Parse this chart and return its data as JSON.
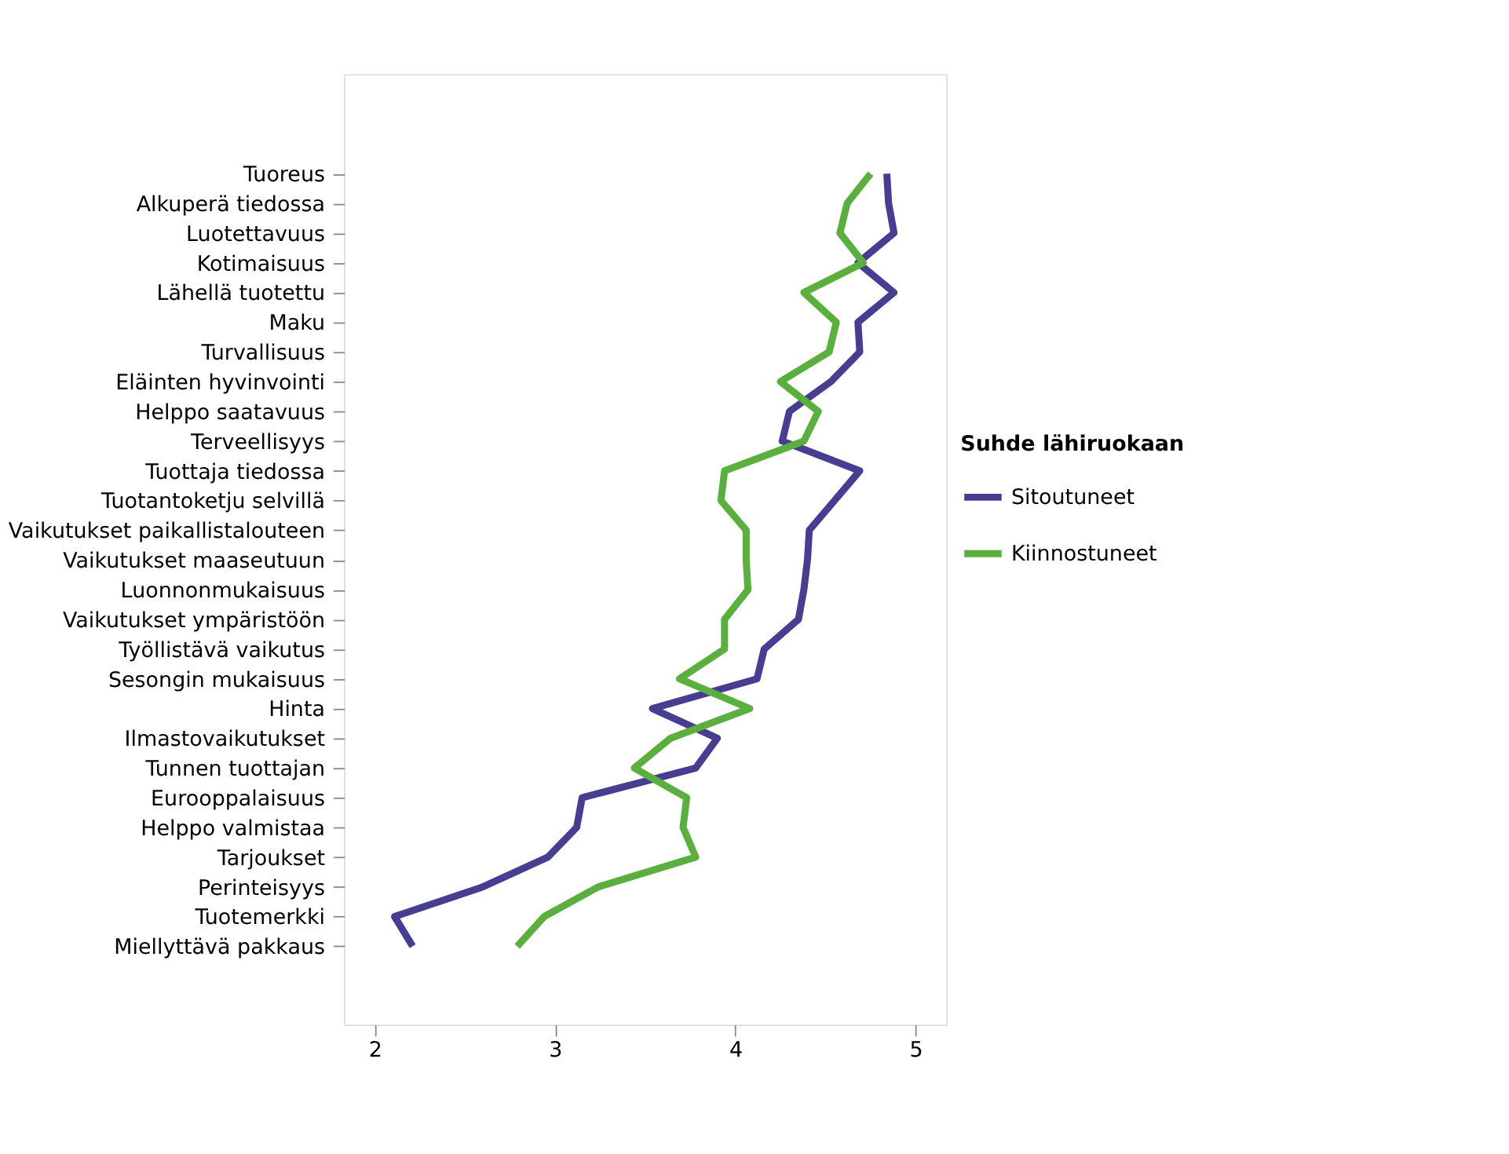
{
  "chart_data": {
    "type": "line",
    "orientation": "horizontal",
    "legend_title": "Suhde lähiruokaan",
    "legend": "right",
    "grid": false,
    "marker": "none",
    "line_style": "solid",
    "categories": [
      "Tuoreus",
      "Alkuperä tiedossa",
      "Luotettavuus",
      "Kotimaisuus",
      "Lähellä tuotettu",
      "Maku",
      "Turvallisuus",
      "Eläinten hyvinvointi",
      "Helppo saatavuus",
      "Terveellisyys",
      "Tuottaja tiedossa",
      "Tuotantoketju selvillä",
      "Vaikutukset paikallistalouteen",
      "Vaikutukset maaseutuun",
      "Luonnonmukaisuus",
      "Vaikutukset ympäristöön",
      "Työllistävä vaikutus",
      "Sesongin mukaisuus",
      "Hinta",
      "Ilmastovaikutukset",
      "Tunnen tuottajan",
      "Eurooppalaisuus",
      "Helppo valmistaa",
      "Tarjoukset",
      "Perinteisyys",
      "Tuotemerkki",
      "Miellyttävä pakkaus"
    ],
    "xlim": [
      1.83,
      5.17
    ],
    "xticks": [
      2,
      3,
      4,
      5
    ],
    "series": [
      {
        "name": "Sitoutuneet",
        "color": "#463f91",
        "values": [
          4.84,
          4.85,
          4.88,
          4.68,
          4.88,
          4.68,
          4.69,
          4.53,
          4.3,
          4.26,
          4.69,
          4.55,
          4.41,
          4.4,
          4.38,
          4.35,
          4.16,
          4.12,
          3.54,
          3.9,
          3.78,
          3.15,
          3.12,
          2.96,
          2.6,
          2.11,
          2.21
        ]
      },
      {
        "name": "Kiinnostuneet",
        "color": "#5aaf3f",
        "values": [
          4.75,
          4.62,
          4.58,
          4.71,
          4.38,
          4.56,
          4.52,
          4.25,
          4.46,
          4.38,
          3.94,
          3.92,
          4.06,
          4.06,
          4.07,
          3.94,
          3.94,
          3.69,
          4.08,
          3.64,
          3.44,
          3.73,
          3.71,
          3.78,
          3.24,
          2.94,
          2.79
        ]
      }
    ]
  }
}
